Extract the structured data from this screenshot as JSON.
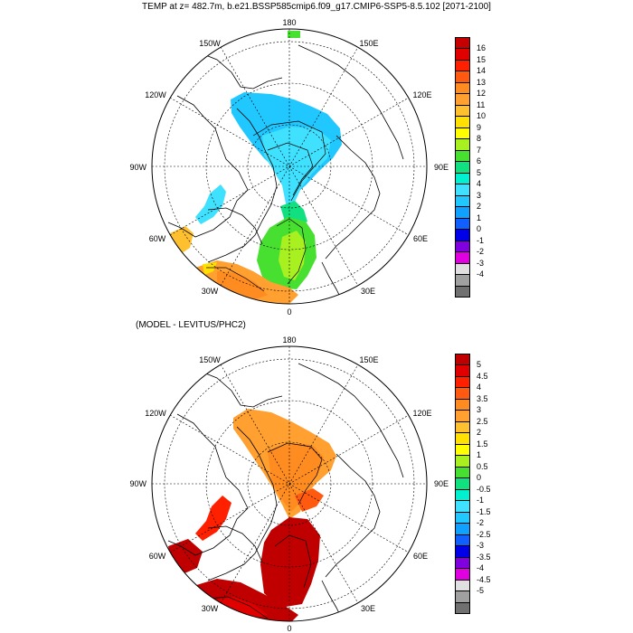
{
  "title": "TEMP at z= 482.7m, b.e21.BSSP585cmip6.f09_g17.CMIP6-SSP5-8.5.102 [2071-2100]",
  "subtitle": "(MODEL - LEVITUS/PHC2)",
  "maps": [
    {
      "name": "absolute-temperature",
      "lon_labels": {
        "top": "180",
        "bottom": "0",
        "left": "90W",
        "right": "90E",
        "tl1": "150W",
        "tl2": "120W",
        "bl1": "60W",
        "bl2": "30W",
        "tr1": "150E",
        "tr2": "120E",
        "br1": "60E",
        "br2": "30E"
      },
      "colorbar": {
        "labels": [
          "16",
          "15",
          "14",
          "13",
          "12",
          "11",
          "10",
          "9",
          "8",
          "7",
          "6",
          "5",
          "4",
          "3",
          "2",
          "1",
          "0",
          "-1",
          "-2",
          "-3",
          "-4"
        ],
        "colors": [
          "#c60000",
          "#e00000",
          "#ff2000",
          "#ff5a10",
          "#ff8c20",
          "#ffa030",
          "#ffc030",
          "#ffe000",
          "#ffff00",
          "#a8f020",
          "#48e030",
          "#10e080",
          "#00f0d0",
          "#40e0ff",
          "#20c8ff",
          "#10a0ff",
          "#1060ff",
          "#0000e8",
          "#8000e0",
          "#e000e0",
          "#e0e0e0",
          "#a0a0a0",
          "#707070"
        ]
      }
    },
    {
      "name": "temperature-difference",
      "lon_labels": {
        "top": "180",
        "bottom": "0",
        "left": "90W",
        "right": "90E",
        "tl1": "150W",
        "tl2": "120W",
        "bl1": "60W",
        "bl2": "30W",
        "tr1": "150E",
        "tr2": "120E",
        "br1": "60E",
        "br2": "30E"
      },
      "colorbar": {
        "labels": [
          "5",
          "4.5",
          "4",
          "3.5",
          "3",
          "2.5",
          "2",
          "1.5",
          "1",
          "0.5",
          "0",
          "-0.5",
          "-1",
          "-1.5",
          "-2",
          "-2.5",
          "-3",
          "-3.5",
          "-4",
          "-4.5",
          "-5"
        ],
        "colors": [
          "#c00000",
          "#e00000",
          "#ff2000",
          "#ff5a10",
          "#ff8c20",
          "#ffa030",
          "#ffc030",
          "#ffe000",
          "#ffff00",
          "#a8f020",
          "#48e030",
          "#10e080",
          "#00f0d0",
          "#40e0ff",
          "#20c8ff",
          "#10a0ff",
          "#1060ff",
          "#0000e8",
          "#8000e0",
          "#e000e0",
          "#e0e0e0",
          "#a0a0a0",
          "#707070"
        ]
      }
    }
  ],
  "colors": {
    "frame": "#000000",
    "background": "#ffffff"
  }
}
